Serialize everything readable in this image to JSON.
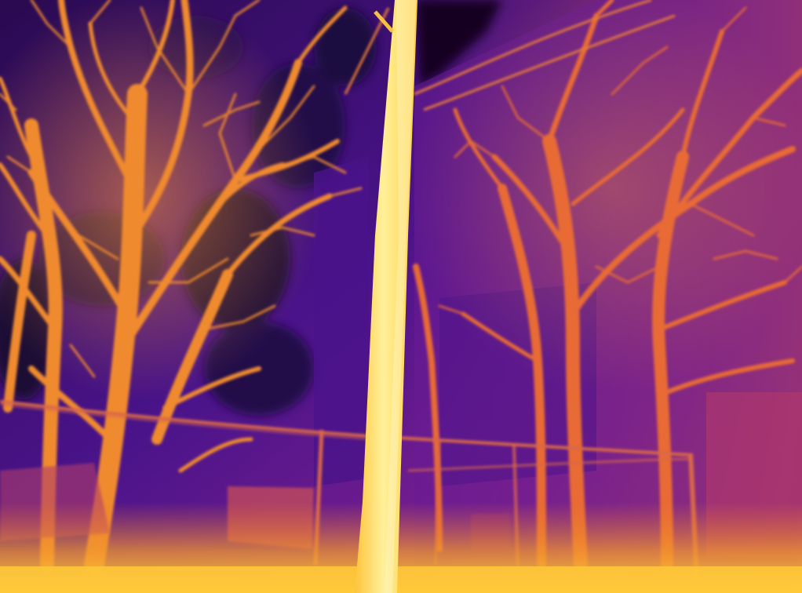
{
  "image": {
    "kind": "thermal-camera-photo",
    "palette": "inferno",
    "subjects": [
      "bare-trees",
      "utility-pole",
      "building-wall",
      "fence",
      "overhead-wires",
      "ground"
    ]
  },
  "colors": {
    "sky_dark": "#14061f",
    "sky_deep": "#2b0b52",
    "wall_purple": "#5b1a92",
    "wall_mid": "#7a1f8f",
    "warm_magenta": "#b8376f",
    "orange": "#ee7b2a",
    "branch_orange": "#f08a2e",
    "hot_yellow": "#ffd84a",
    "hottest": "#fff09a"
  }
}
